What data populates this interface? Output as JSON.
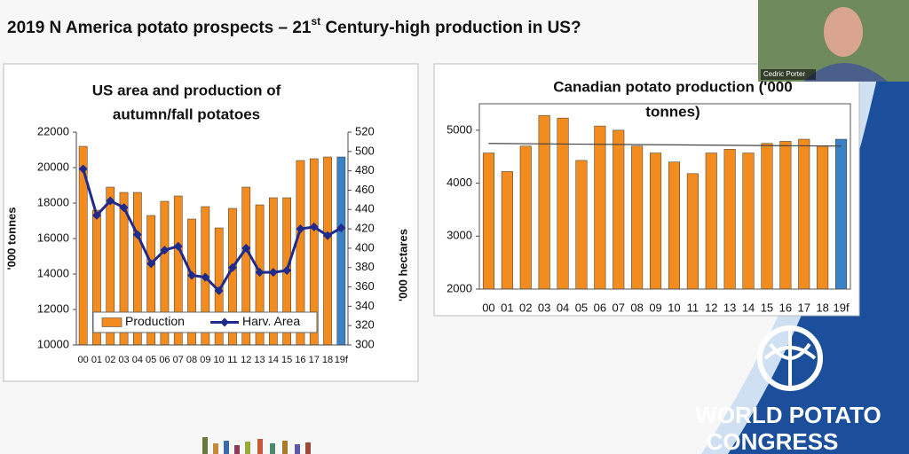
{
  "slide_title": [
    "2019 N America potato prospects – 21",
    "st",
    " Century-high production in US?"
  ],
  "speaker_name": "Cedric Porter",
  "logo": [
    "WORLD POTATO",
    "CONGRESS"
  ],
  "chart_data": [
    {
      "type": "bar",
      "title": [
        "US area and production of",
        "autumn/fall potatoes"
      ],
      "ylabel": "'000 tonnes",
      "y2label": "'000 hectares",
      "categories": [
        "00",
        "01",
        "02",
        "03",
        "04",
        "05",
        "06",
        "07",
        "08",
        "09",
        "10",
        "11",
        "12",
        "13",
        "14",
        "15",
        "16",
        "17",
        "18",
        "19f"
      ],
      "ylim": [
        10000,
        22000
      ],
      "yticks": [
        10000,
        12000,
        14000,
        16000,
        18000,
        20000,
        22000
      ],
      "y2lim": [
        300,
        520
      ],
      "y2ticks": [
        300,
        320,
        340,
        360,
        380,
        400,
        420,
        440,
        460,
        480,
        500,
        520
      ],
      "grid": false,
      "legend": "bottom",
      "series": [
        {
          "name": "Production",
          "color": "#f28c1e",
          "point_colors": [
            "#f28c1e",
            "#f28c1e",
            "#f28c1e",
            "#f28c1e",
            "#f28c1e",
            "#f28c1e",
            "#f28c1e",
            "#f28c1e",
            "#f28c1e",
            "#f28c1e",
            "#f28c1e",
            "#f28c1e",
            "#f28c1e",
            "#f28c1e",
            "#f28c1e",
            "#f28c1e",
            "#f28c1e",
            "#f28c1e",
            "#f28c1e",
            "#3a82c4"
          ],
          "values": [
            21200,
            17600,
            18900,
            18600,
            18600,
            17300,
            18100,
            18400,
            17100,
            17800,
            16600,
            17700,
            18900,
            17900,
            18300,
            18300,
            20400,
            20500,
            20600,
            20600
          ]
        },
        {
          "name": "Harv. Area",
          "color": "#1f2a8a",
          "axis": "y2",
          "values": [
            482,
            434,
            449,
            442,
            414,
            384,
            398,
            402,
            372,
            370,
            356,
            380,
            400,
            375,
            375,
            377,
            420,
            422,
            413,
            421
          ]
        }
      ]
    },
    {
      "type": "bar",
      "title": [
        "Canadian potato production ('000",
        "tonnes)"
      ],
      "categories": [
        "00",
        "01",
        "02",
        "03",
        "04",
        "05",
        "06",
        "07",
        "08",
        "09",
        "10",
        "11",
        "12",
        "13",
        "14",
        "15",
        "16",
        "17",
        "18",
        "19f"
      ],
      "ylim": [
        2000,
        5500
      ],
      "yticks": [
        2000,
        3000,
        4000,
        5000
      ],
      "grid": false,
      "series": [
        {
          "color": "#f28c1e",
          "point_colors": [
            "#f28c1e",
            "#f28c1e",
            "#f28c1e",
            "#f28c1e",
            "#f28c1e",
            "#f28c1e",
            "#f28c1e",
            "#f28c1e",
            "#f28c1e",
            "#f28c1e",
            "#f28c1e",
            "#f28c1e",
            "#f28c1e",
            "#f28c1e",
            "#f28c1e",
            "#f28c1e",
            "#f28c1e",
            "#f28c1e",
            "#f28c1e",
            "#3a82c4"
          ],
          "values": [
            4570,
            4220,
            4700,
            5280,
            5230,
            4430,
            5080,
            5000,
            4700,
            4570,
            4400,
            4180,
            4570,
            4640,
            4570,
            4750,
            4790,
            4830,
            4700,
            4830
          ]
        }
      ],
      "trend_line": {
        "color": "#444444",
        "start": 4750,
        "end": 4700
      }
    }
  ]
}
